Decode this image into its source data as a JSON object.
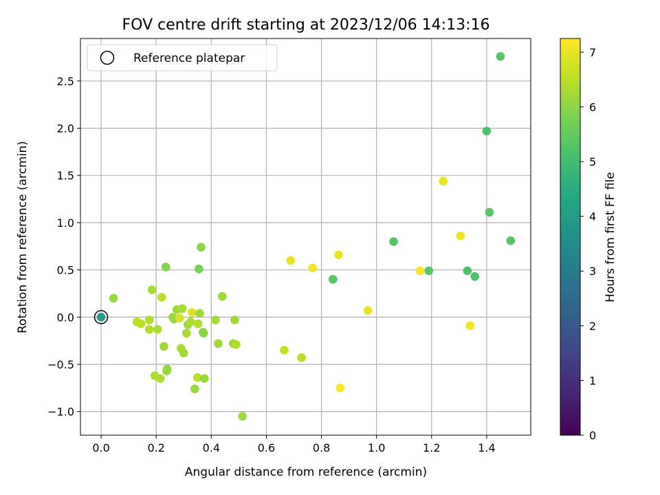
{
  "chart_data": {
    "type": "scatter",
    "title": "FOV centre drift starting at 2023/12/06 14:13:16",
    "xlabel": "Angular distance from reference (arcmin)",
    "ylabel": "Rotation from reference (arcmin)",
    "xlim": [
      -0.075,
      1.56
    ],
    "ylim": [
      -1.25,
      2.95
    ],
    "x_ticks": [
      0.0,
      0.2,
      0.4,
      0.6,
      0.8,
      1.0,
      1.2,
      1.4
    ],
    "x_tick_labels": [
      "0.0",
      "0.2",
      "0.4",
      "0.6",
      "0.8",
      "1.0",
      "1.2",
      "1.4"
    ],
    "y_ticks": [
      -1.0,
      -0.5,
      0.0,
      0.5,
      1.0,
      1.5,
      2.0,
      2.5
    ],
    "y_tick_labels": [
      "−1.0",
      "−0.5",
      "0.0",
      "0.5",
      "1.0",
      "1.5",
      "2.0",
      "2.5"
    ],
    "grid": true,
    "legend": {
      "placement": "top-left",
      "entries": [
        {
          "label": "Reference platepar",
          "marker": "open-circle"
        }
      ]
    },
    "colorbar": {
      "label": "Hours from first FF file",
      "range": [
        0,
        7.25
      ],
      "ticks": [
        0,
        1,
        2,
        3,
        4,
        5,
        6,
        7
      ],
      "tick_labels": [
        "0",
        "1",
        "2",
        "3",
        "4",
        "5",
        "6",
        "7"
      ],
      "colormap": "viridis",
      "stops": [
        "#440154",
        "#482475",
        "#414487",
        "#355f8d",
        "#2a788e",
        "#21918c",
        "#22a884",
        "#44bf70",
        "#7ad151",
        "#bddf26",
        "#fde725"
      ]
    },
    "reference_point": {
      "x": 0.0,
      "y": 0.0,
      "hours": 4.0
    },
    "points": [
      {
        "x": 0.0,
        "y": 0.0,
        "hours": 4.0
      },
      {
        "x": 0.045,
        "y": 0.2,
        "hours": 6.1
      },
      {
        "x": 0.13,
        "y": -0.05,
        "hours": 6.5
      },
      {
        "x": 0.145,
        "y": -0.07,
        "hours": 6.5
      },
      {
        "x": 0.175,
        "y": -0.03,
        "hours": 6.4
      },
      {
        "x": 0.175,
        "y": -0.13,
        "hours": 6.4
      },
      {
        "x": 0.185,
        "y": 0.29,
        "hours": 6.3
      },
      {
        "x": 0.195,
        "y": -0.62,
        "hours": 6.4
      },
      {
        "x": 0.205,
        "y": -0.13,
        "hours": 6.3
      },
      {
        "x": 0.215,
        "y": -0.65,
        "hours": 6.4
      },
      {
        "x": 0.22,
        "y": 0.21,
        "hours": 6.5
      },
      {
        "x": 0.228,
        "y": -0.31,
        "hours": 6.2
      },
      {
        "x": 0.235,
        "y": 0.53,
        "hours": 5.9
      },
      {
        "x": 0.238,
        "y": -0.57,
        "hours": 6.1
      },
      {
        "x": 0.24,
        "y": -0.55,
        "hours": 6.1
      },
      {
        "x": 0.26,
        "y": 0.0,
        "hours": 6.2
      },
      {
        "x": 0.265,
        "y": -0.02,
        "hours": 6.1
      },
      {
        "x": 0.275,
        "y": 0.08,
        "hours": 6.2
      },
      {
        "x": 0.285,
        "y": -0.01,
        "hours": 6.8
      },
      {
        "x": 0.29,
        "y": -0.33,
        "hours": 6.3
      },
      {
        "x": 0.295,
        "y": 0.09,
        "hours": 6.3
      },
      {
        "x": 0.3,
        "y": -0.38,
        "hours": 6.2
      },
      {
        "x": 0.31,
        "y": -0.17,
        "hours": 6.3
      },
      {
        "x": 0.315,
        "y": -0.08,
        "hours": 6.2
      },
      {
        "x": 0.325,
        "y": -0.05,
        "hours": 6.3
      },
      {
        "x": 0.33,
        "y": 0.05,
        "hours": 6.9
      },
      {
        "x": 0.34,
        "y": -0.76,
        "hours": 6.1
      },
      {
        "x": 0.35,
        "y": -0.64,
        "hours": 6.5
      },
      {
        "x": 0.352,
        "y": -0.07,
        "hours": 6.4
      },
      {
        "x": 0.355,
        "y": 0.51,
        "hours": 5.7
      },
      {
        "x": 0.358,
        "y": 0.04,
        "hours": 6.2
      },
      {
        "x": 0.363,
        "y": 0.74,
        "hours": 6.0
      },
      {
        "x": 0.37,
        "y": -0.16,
        "hours": 6.0
      },
      {
        "x": 0.372,
        "y": -0.17,
        "hours": 6.0
      },
      {
        "x": 0.375,
        "y": -0.65,
        "hours": 6.1
      },
      {
        "x": 0.415,
        "y": -0.03,
        "hours": 6.3
      },
      {
        "x": 0.425,
        "y": -0.28,
        "hours": 6.2
      },
      {
        "x": 0.44,
        "y": 0.22,
        "hours": 6.2
      },
      {
        "x": 0.48,
        "y": -0.28,
        "hours": 6.1
      },
      {
        "x": 0.485,
        "y": -0.03,
        "hours": 6.2
      },
      {
        "x": 0.49,
        "y": -0.29,
        "hours": 6.4
      },
      {
        "x": 0.513,
        "y": -1.05,
        "hours": 6.2
      },
      {
        "x": 0.665,
        "y": -0.35,
        "hours": 6.6
      },
      {
        "x": 0.688,
        "y": 0.6,
        "hours": 7.0
      },
      {
        "x": 0.728,
        "y": -0.43,
        "hours": 6.5
      },
      {
        "x": 0.768,
        "y": 0.52,
        "hours": 7.1
      },
      {
        "x": 0.842,
        "y": 0.4,
        "hours": 5.3
      },
      {
        "x": 0.862,
        "y": 0.66,
        "hours": 7.0
      },
      {
        "x": 0.868,
        "y": -0.75,
        "hours": 7.2
      },
      {
        "x": 0.968,
        "y": 0.07,
        "hours": 7.0
      },
      {
        "x": 1.062,
        "y": 0.8,
        "hours": 5.3
      },
      {
        "x": 1.158,
        "y": 0.49,
        "hours": 7.2
      },
      {
        "x": 1.19,
        "y": 0.49,
        "hours": 5.3
      },
      {
        "x": 1.242,
        "y": 1.44,
        "hours": 7.0
      },
      {
        "x": 1.305,
        "y": 0.86,
        "hours": 7.1
      },
      {
        "x": 1.33,
        "y": 0.49,
        "hours": 5.2
      },
      {
        "x": 1.34,
        "y": -0.09,
        "hours": 7.1
      },
      {
        "x": 1.357,
        "y": 0.43,
        "hours": 5.2
      },
      {
        "x": 1.4,
        "y": 1.97,
        "hours": 5.2
      },
      {
        "x": 1.41,
        "y": 1.11,
        "hours": 5.3
      },
      {
        "x": 1.45,
        "y": 2.76,
        "hours": 5.3
      },
      {
        "x": 1.487,
        "y": 0.81,
        "hours": 5.3
      }
    ]
  }
}
